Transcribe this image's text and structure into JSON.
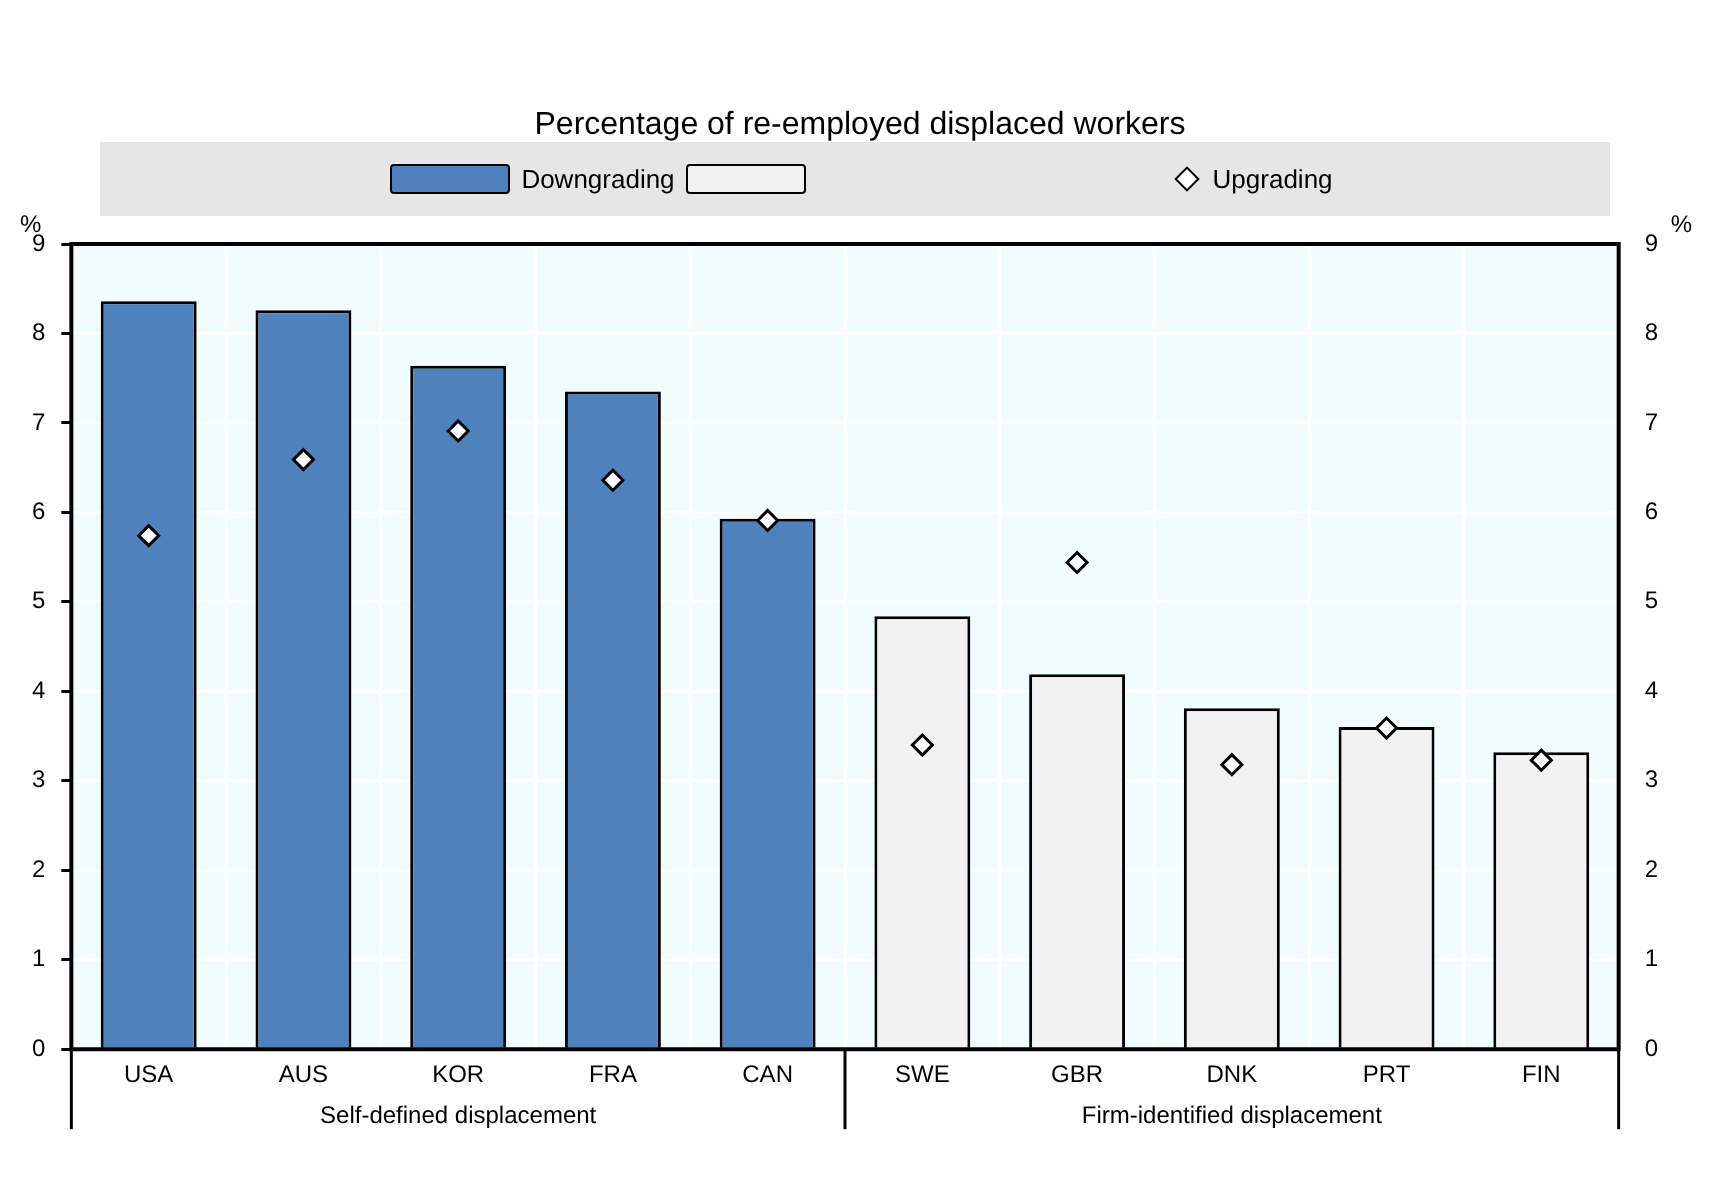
{
  "chart_data": {
    "type": "bar",
    "title": "Percentage of re-employed displaced workers",
    "categories": [
      "USA",
      "AUS",
      "KOR",
      "FRA",
      "CAN",
      "SWE",
      "GBR",
      "DNK",
      "PRT",
      "FIN"
    ],
    "series": [
      {
        "name": "Downgrading",
        "colors": [
          "#4f81bd",
          "#4f81bd",
          "#4f81bd",
          "#4f81bd",
          "#4f81bd",
          "#f2f2f2",
          "#f2f2f2",
          "#f2f2f2",
          "#f2f2f2",
          "#f2f2f2"
        ],
        "values": [
          8.36,
          8.26,
          7.64,
          7.35,
          5.93,
          4.84,
          4.19,
          3.81,
          3.6,
          3.32
        ]
      },
      {
        "name": "Upgrading",
        "type": "scatter",
        "marker": "diamond",
        "color": "#ffffff",
        "x": [
          "USA",
          "AUS",
          "KOR",
          "FRA",
          "CAN",
          "SWE",
          "GBR",
          "DNK",
          "PRT",
          "FIN"
        ],
        "values": [
          5.74,
          6.59,
          6.91,
          6.36,
          5.91,
          3.4,
          5.44,
          3.18,
          3.59,
          3.23
        ]
      }
    ],
    "ylabel": "%",
    "y2label": "%",
    "ylim": [
      0,
      9
    ],
    "yticks": [
      0,
      1,
      2,
      3,
      4,
      5,
      6,
      7,
      8,
      9
    ],
    "y2lim": [
      0,
      9
    ],
    "y2ticks": [
      0,
      1,
      2,
      3,
      4,
      5,
      6,
      7,
      8,
      9
    ],
    "annotations": [
      "Self-defined displacement",
      "Firm-identified displacement"
    ],
    "grid": true,
    "legend": "top"
  }
}
